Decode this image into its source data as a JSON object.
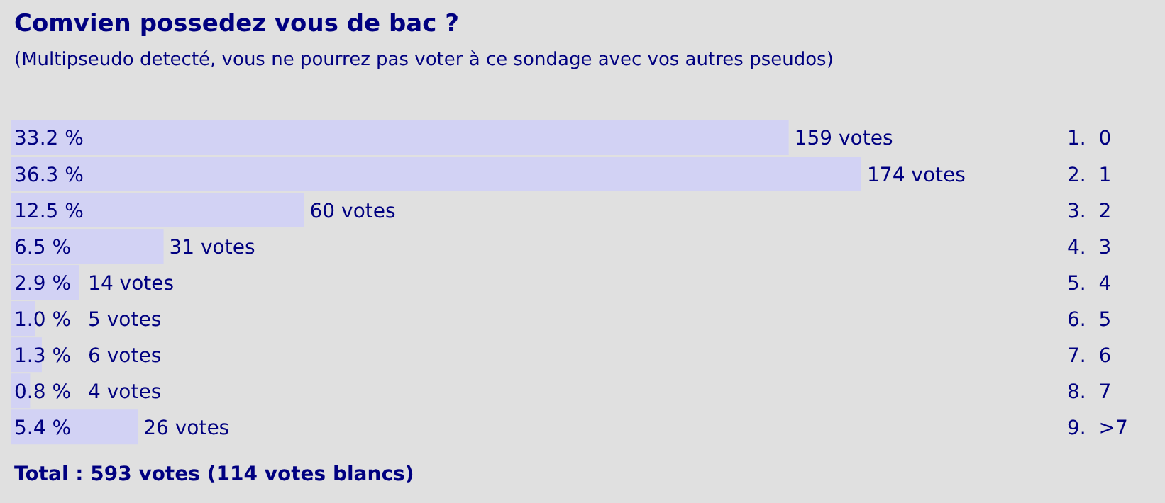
{
  "chart_data": {
    "type": "bar",
    "orientation": "horizontal",
    "title": "Comvien possedez vous de bac ?",
    "subtitle": "(Multipseudo detecté, vous ne pourrez pas voter à ce sondage avec vos autres pseudos)",
    "categories": [
      "1.  0",
      "2.  1",
      "3.  2",
      "4.  3",
      "5.  4",
      "6.  5",
      "7.  6",
      "8.  7",
      "9.  >7"
    ],
    "values": [
      33.2,
      36.3,
      12.5,
      6.5,
      2.9,
      1.0,
      1.3,
      0.8,
      5.4
    ],
    "color": "#d2d2f4",
    "value_labels": [
      "33.2 %",
      "36.3 %",
      "12.5 %",
      "6.5 %",
      "2.9 %",
      "1.0 %",
      "1.3 %",
      "0.8 %",
      "5.4 %"
    ],
    "annotations": [
      {
        "text": "159 votes",
        "x": 33.2,
        "y": "1.  0"
      },
      {
        "text": "174 votes",
        "x": 36.3,
        "y": "2.  1"
      },
      {
        "text": "60 votes",
        "x": 12.5,
        "y": "3.  2"
      },
      {
        "text": "31 votes",
        "x": 6.5,
        "y": "4.  3"
      },
      {
        "text": "14 votes",
        "x": 2.9,
        "y": "5.  4"
      },
      {
        "text": "5 votes",
        "x": 1.0,
        "y": "6.  5"
      },
      {
        "text": "6 votes",
        "x": 1.3,
        "y": "7.  6"
      },
      {
        "text": "4 votes",
        "x": 0.8,
        "y": "8.  7"
      },
      {
        "text": "26 votes",
        "x": 5.4,
        "y": "9.  >7"
      },
      "Total : 593 votes (114 votes blancs)"
    ]
  }
}
